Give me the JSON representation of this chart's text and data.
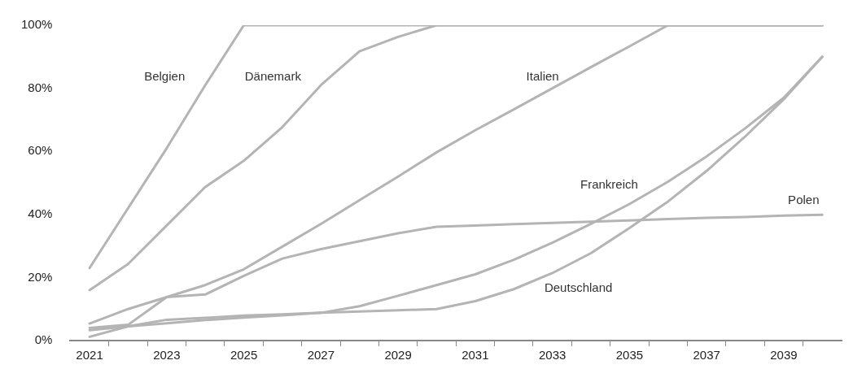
{
  "chart_data": {
    "type": "line",
    "x": [
      2021,
      2022,
      2023,
      2024,
      2025,
      2026,
      2027,
      2028,
      2029,
      2030,
      2031,
      2032,
      2033,
      2034,
      2035,
      2036,
      2037,
      2038,
      2039,
      2040
    ],
    "series": [
      {
        "name": "Belgien",
        "color": "#b4b4b4",
        "values": [
          23,
          42,
          61,
          81,
          100,
          100,
          100,
          100,
          100,
          100,
          100,
          100,
          100,
          100,
          100,
          100,
          100,
          100,
          100,
          100
        ]
      },
      {
        "name": "Dänemark",
        "color": "#b4b4b4",
        "values": [
          16,
          24.3,
          36.5,
          48.7,
          57,
          67.7,
          81,
          91.7,
          96.3,
          100,
          100,
          100,
          100,
          100,
          100,
          100,
          100,
          100,
          100,
          100
        ]
      },
      {
        "name": "Italien",
        "color": "#b4b4b4",
        "values": [
          5.4,
          10,
          13.8,
          17.6,
          22.6,
          29.8,
          37,
          44.5,
          52,
          59.7,
          66.7,
          73.3,
          80,
          86.7,
          93.3,
          100,
          100,
          100,
          100,
          100
        ]
      },
      {
        "name": "Polen",
        "color": "#b4b4b4",
        "values": [
          4,
          5,
          13.8,
          14.6,
          20.5,
          26,
          29,
          31.5,
          34,
          36.1,
          36.5,
          36.9,
          37.3,
          37.7,
          38.1,
          38.5,
          38.9,
          39.2,
          39.6,
          39.9
        ]
      },
      {
        "name": "Frankreich",
        "color": "#b4b4b4",
        "values": [
          3.3,
          4.5,
          5.5,
          6.5,
          7.3,
          8,
          8.8,
          10.9,
          14.2,
          17.6,
          21,
          25.6,
          31,
          37,
          43.3,
          50.4,
          58.4,
          67.3,
          77,
          90
        ]
      },
      {
        "name": "Deutschland",
        "color": "#b4b4b4",
        "values": [
          1.2,
          4.5,
          6.6,
          7.2,
          7.9,
          8.3,
          8.8,
          9.2,
          9.6,
          10,
          12.5,
          16.3,
          21.4,
          27.7,
          35.7,
          44.1,
          53.8,
          64.7,
          76.5,
          90
        ]
      }
    ],
    "xlim": [
      2020.5,
      2040.5
    ],
    "xticks": [
      2021,
      {
        "value": 2021.5,
        "label": null
      },
      {
        "value": 2022.5,
        "label": null
      },
      2023,
      {
        "value": 2023.5,
        "label": null
      },
      {
        "value": 2024.5,
        "label": null
      },
      2025,
      {
        "value": 2025.5,
        "label": null
      },
      {
        "value": 2026.5,
        "label": null
      },
      2027,
      {
        "value": 2027.5,
        "label": null
      },
      {
        "value": 2028.5,
        "label": null
      },
      2029,
      {
        "value": 2029.5,
        "label": null
      },
      {
        "value": 2030.5,
        "label": null
      },
      2031,
      {
        "value": 2031.5,
        "label": null
      },
      {
        "value": 2032.5,
        "label": null
      },
      2033,
      {
        "value": 2033.5,
        "label": null
      },
      {
        "value": 2034.5,
        "label": null
      },
      2035,
      {
        "value": 2035.5,
        "label": null
      },
      {
        "value": 2036.5,
        "label": null
      },
      2037,
      {
        "value": 2037.5,
        "label": null
      },
      {
        "value": 2038.5,
        "label": null
      },
      2039,
      {
        "value": 2039.5,
        "label": null
      }
    ],
    "ylim": [
      0,
      100
    ],
    "yticks": [
      {
        "value": 0,
        "label": "0%"
      },
      {
        "value": 20,
        "label": "20%"
      },
      {
        "value": 40,
        "label": "40%"
      },
      {
        "value": 60,
        "label": "60%"
      },
      {
        "value": 80,
        "label": "80%"
      },
      {
        "value": 100,
        "label": "100%"
      }
    ],
    "grid": false,
    "legend": false,
    "marker": "none",
    "line_style": "solid"
  }
}
